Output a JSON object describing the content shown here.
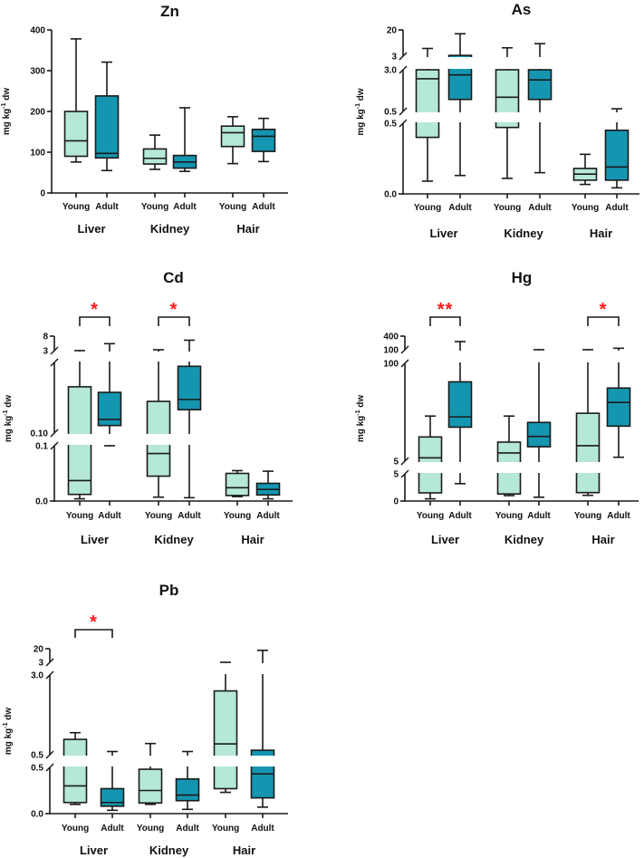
{
  "chart_data": [
    {
      "type": "box",
      "title": "Zn",
      "ylabel": [
        "mg kg",
        "-1",
        " dw"
      ],
      "tissues": [
        "Liver",
        "Kidney",
        "Hair"
      ],
      "groups": [
        "Young",
        "Adult"
      ],
      "segments": [
        {
          "range": [
            0,
            400
          ],
          "ticks": [
            {
              "value": 0,
              "label": "0"
            },
            {
              "value": 100,
              "label": "100"
            },
            {
              "value": 200,
              "label": "200"
            },
            {
              "value": 300,
              "label": "300"
            },
            {
              "value": 400,
              "label": "400"
            }
          ]
        }
      ],
      "boxes": [
        {
          "tissue": "Liver",
          "group": "Young",
          "min": 76,
          "q1": 90,
          "median": 128,
          "q3": 200,
          "max": 378
        },
        {
          "tissue": "Liver",
          "group": "Adult",
          "min": 55,
          "q1": 86,
          "median": 97,
          "q3": 238,
          "max": 321
        },
        {
          "tissue": "Kidney",
          "group": "Young",
          "min": 58,
          "q1": 71,
          "median": 85,
          "q3": 108,
          "max": 142
        },
        {
          "tissue": "Kidney",
          "group": "Adult",
          "min": 53,
          "q1": 61,
          "median": 76,
          "q3": 92,
          "max": 209
        },
        {
          "tissue": "Hair",
          "group": "Young",
          "min": 72,
          "q1": 114,
          "median": 148,
          "q3": 164,
          "max": 187
        },
        {
          "tissue": "Hair",
          "group": "Adult",
          "min": 77,
          "q1": 102,
          "median": 139,
          "q3": 156,
          "max": 183
        }
      ],
      "significance": []
    },
    {
      "type": "box",
      "title": "As",
      "ylabel": [
        "mg kg",
        "-1",
        " dw"
      ],
      "tissues": [
        "Liver",
        "Kidney",
        "Hair"
      ],
      "groups": [
        "Young",
        "Adult"
      ],
      "segments": [
        {
          "range": [
            0,
            0.5
          ],
          "ticks": [
            {
              "value": 0,
              "label": "0.0"
            },
            {
              "value": 0.5,
              "label": "0.5"
            }
          ]
        },
        {
          "range": [
            0.5,
            3.0
          ],
          "ticks": [
            {
              "value": 0.5,
              "label": "0.5"
            },
            {
              "value": 3.0,
              "label": "3.0"
            }
          ]
        },
        {
          "range": [
            3,
            20
          ],
          "ticks": [
            {
              "value": 3,
              "label": "3"
            },
            {
              "value": 20,
              "label": "20"
            }
          ]
        }
      ],
      "boxes": [
        {
          "tissue": "Liver",
          "group": "Young",
          "min": 0.09,
          "q1": 0.4,
          "median": 2.46,
          "q3": 3.0,
          "max": 8
        },
        {
          "tissue": "Liver",
          "group": "Adult",
          "min": 0.13,
          "q1": 1.22,
          "median": 2.69,
          "q3": 3.5,
          "max": 17.5
        },
        {
          "tissue": "Kidney",
          "group": "Young",
          "min": 0.11,
          "q1": 0.47,
          "median": 1.35,
          "q3": 3.0,
          "max": 8.4
        },
        {
          "tissue": "Kidney",
          "group": "Adult",
          "min": 0.15,
          "q1": 1.22,
          "median": 2.39,
          "q3": 3.0,
          "max": 11.1
        },
        {
          "tissue": "Hair",
          "group": "Young",
          "min": 0.067,
          "q1": 0.097,
          "median": 0.14,
          "q3": 0.18,
          "max": 0.28
        },
        {
          "tissue": "Hair",
          "group": "Adult",
          "min": 0.043,
          "q1": 0.097,
          "median": 0.19,
          "q3": 0.45,
          "max": 0.66
        }
      ],
      "significance": []
    },
    {
      "type": "box",
      "title": "Cd",
      "ylabel": [
        "mg kg",
        "-1",
        " dw"
      ],
      "tissues": [
        "Liver",
        "Kidney",
        "Hair"
      ],
      "groups": [
        "Young",
        "Adult"
      ],
      "segments": [
        {
          "range": [
            0,
            0.1
          ],
          "ticks": [
            {
              "value": 0,
              "label": "0.0"
            },
            {
              "value": 0.1,
              "label": "0.1"
            }
          ]
        },
        {
          "range": [
            0.1,
            3
          ],
          "ticks": [
            {
              "value": 0.1,
              "label": "0.10"
            }
          ]
        },
        {
          "range": [
            3,
            8
          ],
          "ticks": [
            {
              "value": 3,
              "label": "3"
            },
            {
              "value": 8,
              "label": "8"
            }
          ]
        }
      ],
      "boxes": [
        {
          "tissue": "Liver",
          "group": "Young",
          "min": 0.004,
          "q1": 0.012,
          "median": 0.037,
          "q3": 2.0,
          "max": 3.01
        },
        {
          "tissue": "Liver",
          "group": "Adult",
          "min": 0.1,
          "q1": 0.41,
          "median": 0.66,
          "q3": 1.77,
          "max": 5.4
        },
        {
          "tissue": "Kidney",
          "group": "Young",
          "min": 0.007,
          "q1": 0.045,
          "median": 0.086,
          "q3": 1.4,
          "max": 3.3
        },
        {
          "tissue": "Kidney",
          "group": "Adult",
          "min": 0.006,
          "q1": 1.06,
          "median": 1.48,
          "q3": 2.84,
          "max": 6.6
        },
        {
          "tissue": "Hair",
          "group": "Young",
          "min": 0.008,
          "q1": 0.01,
          "median": 0.024,
          "q3": 0.05,
          "max": 0.055
        },
        {
          "tissue": "Hair",
          "group": "Adult",
          "min": 0.004,
          "q1": 0.011,
          "median": 0.021,
          "q3": 0.032,
          "max": 0.054
        }
      ],
      "significance": [
        {
          "tissue": "Liver",
          "label": "*"
        },
        {
          "tissue": "Kidney",
          "label": "*"
        }
      ]
    },
    {
      "type": "box",
      "title": "Hg",
      "ylabel": [
        "mg kg",
        "-1",
        " dw"
      ],
      "tissues": [
        "Liver",
        "Kidney",
        "Hair"
      ],
      "groups": [
        "Young",
        "Adult"
      ],
      "segments": [
        {
          "range": [
            0,
            5
          ],
          "ticks": [
            {
              "value": 0,
              "label": "0"
            },
            {
              "value": 5,
              "label": "5"
            }
          ]
        },
        {
          "range": [
            5,
            100
          ],
          "ticks": [
            {
              "value": 5,
              "label": "5"
            },
            {
              "value": 100,
              "label": "100"
            }
          ]
        },
        {
          "range": [
            100,
            400
          ],
          "ticks": [
            {
              "value": 100,
              "label": "100"
            },
            {
              "value": 400,
              "label": "400"
            }
          ]
        }
      ],
      "boxes": [
        {
          "tissue": "Liver",
          "group": "Young",
          "min": 0.4,
          "q1": 1.5,
          "median": 8.2,
          "q3": 28.5,
          "max": 48.8
        },
        {
          "tissue": "Liver",
          "group": "Adult",
          "min": 3.2,
          "q1": 38,
          "median": 48,
          "q3": 82,
          "max": 280
        },
        {
          "tissue": "Kidney",
          "group": "Young",
          "min": 1.0,
          "q1": 1.3,
          "median": 13,
          "q3": 23.5,
          "max": 48.8
        },
        {
          "tissue": "Kidney",
          "group": "Adult",
          "min": 0.7,
          "q1": 19,
          "median": 29,
          "q3": 42.6,
          "max": 101
        },
        {
          "tissue": "Hair",
          "group": "Young",
          "min": 1.05,
          "q1": 1.55,
          "median": 20,
          "q3": 51.5,
          "max": 101
        },
        {
          "tissue": "Hair",
          "group": "Adult",
          "min": 8.8,
          "q1": 39,
          "median": 62,
          "q3": 76,
          "max": 133
        }
      ],
      "significance": [
        {
          "tissue": "Liver",
          "label": "**"
        },
        {
          "tissue": "Hair",
          "label": "*"
        }
      ]
    },
    {
      "type": "box",
      "title": "Pb",
      "ylabel": [
        "mg kg",
        "-1",
        " dw"
      ],
      "tissues": [
        "Liver",
        "Kidney",
        "Hair"
      ],
      "groups": [
        "Young",
        "Adult"
      ],
      "segments": [
        {
          "range": [
            0,
            0.5
          ],
          "ticks": [
            {
              "value": 0,
              "label": "0.0"
            },
            {
              "value": 0.5,
              "label": "0.5"
            }
          ]
        },
        {
          "range": [
            0.5,
            3.0
          ],
          "ticks": [
            {
              "value": 0.5,
              "label": "0.5"
            },
            {
              "value": 3.0,
              "label": "3.0"
            }
          ]
        },
        {
          "range": [
            3,
            20
          ],
          "ticks": [
            {
              "value": 3,
              "label": "3"
            },
            {
              "value": 20,
              "label": "20"
            }
          ]
        }
      ],
      "boxes": [
        {
          "tissue": "Liver",
          "group": "Young",
          "min": 0.1,
          "q1": 0.12,
          "median": 0.3,
          "q3": 0.98,
          "max": 1.19
        },
        {
          "tissue": "Liver",
          "group": "Adult",
          "min": 0.036,
          "q1": 0.08,
          "median": 0.12,
          "q3": 0.27,
          "max": 0.6
        },
        {
          "tissue": "Kidney",
          "group": "Young",
          "min": 0.1,
          "q1": 0.115,
          "median": 0.25,
          "q3": 0.48,
          "max": 0.85
        },
        {
          "tissue": "Kidney",
          "group": "Adult",
          "min": 0.046,
          "q1": 0.14,
          "median": 0.2,
          "q3": 0.375,
          "max": 0.6
        },
        {
          "tissue": "Hair",
          "group": "Young",
          "min": 0.23,
          "q1": 0.27,
          "median": 0.84,
          "q3": 2.5,
          "max": 3.01
        },
        {
          "tissue": "Hair",
          "group": "Adult",
          "min": 0.07,
          "q1": 0.17,
          "median": 0.43,
          "q3": 0.64,
          "max": 18
        }
      ],
      "significance": [
        {
          "tissue": "Liver",
          "label": "*"
        }
      ]
    }
  ],
  "colors": {
    "young": "#b5e8d5",
    "adult": "#1496b0",
    "stroke": "#1a1a1a",
    "significance": "#ff1a1a"
  }
}
